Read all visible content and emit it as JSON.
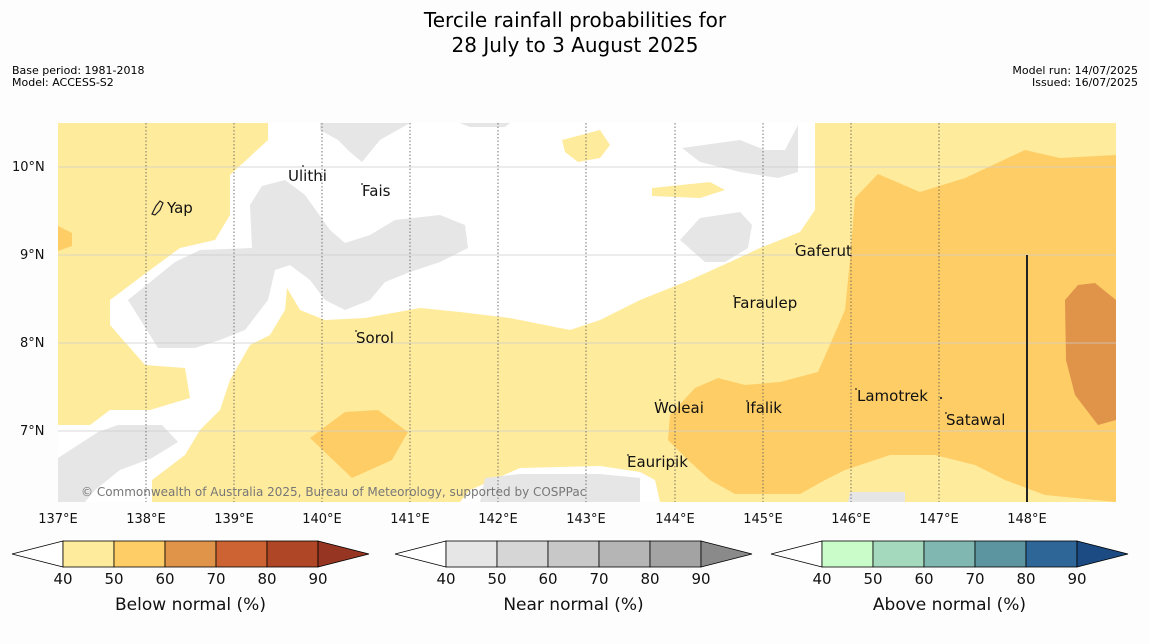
{
  "title": {
    "line1": "Tercile rainfall probabilities for",
    "line2": "28 July to 3 August 2025"
  },
  "meta": {
    "base_period": "Base period: 1981-2018",
    "model": "Model: ACCESS-S2",
    "model_run": "Model run: 14/07/2025",
    "issued": "Issued: 16/07/2025"
  },
  "map": {
    "lon_ticks": [
      "137°E",
      "138°E",
      "139°E",
      "140°E",
      "141°E",
      "142°E",
      "143°E",
      "144°E",
      "145°E",
      "146°E",
      "147°E",
      "148°E"
    ],
    "lat_ticks": [
      "10°N",
      "9°N",
      "8°N",
      "7°N"
    ],
    "places": [
      "Ulithi",
      "Fais",
      "Yap",
      "Gaferut",
      "Faraulep",
      "Sorol",
      "Lamotrek",
      "Woleai",
      "Ifalik",
      "Satawal",
      "Eauripik"
    ],
    "copyright": "© Commonwealth of Australia 2025, Bureau of Meteorology, supported by COSPPac"
  },
  "colorbars": [
    {
      "title": "Below normal (%)",
      "ticks": [
        "40",
        "50",
        "60",
        "70",
        "80",
        "90"
      ],
      "colors": [
        "#ffeb9c",
        "#fecd66",
        "#e0944a",
        "#cd6333",
        "#af4726",
        "#963522"
      ]
    },
    {
      "title": "Near normal (%)",
      "ticks": [
        "40",
        "50",
        "60",
        "70",
        "80",
        "90"
      ],
      "colors": [
        "#e6e6e6",
        "#d6d6d6",
        "#c8c8c8",
        "#b5b5b5",
        "#a3a3a3",
        "#8a8a8a"
      ]
    },
    {
      "title": "Above normal (%)",
      "ticks": [
        "40",
        "50",
        "60",
        "70",
        "80",
        "90"
      ],
      "colors": [
        "#cafcca",
        "#a4d9be",
        "#80b8b1",
        "#5c94a0",
        "#2f6698",
        "#1b4b82"
      ]
    }
  ]
}
